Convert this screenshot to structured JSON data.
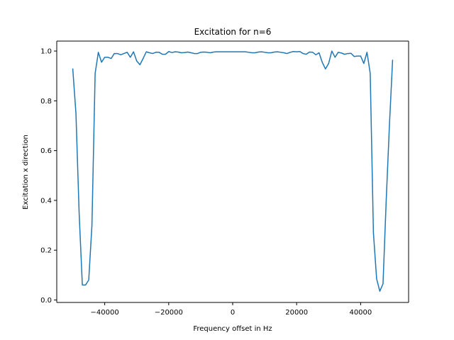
{
  "chart_data": {
    "type": "line",
    "title": "Excitation for n=6",
    "xlabel": "Frequency offset in Hz",
    "ylabel": "Excitation x direction",
    "xlim": [
      -55000,
      55000
    ],
    "ylim": [
      -0.01,
      1.04
    ],
    "xticks": [
      -40000,
      -20000,
      0,
      20000,
      40000
    ],
    "xtick_labels": [
      "−40000",
      "−20000",
      "0",
      "20000",
      "40000"
    ],
    "yticks": [
      0.0,
      0.2,
      0.4,
      0.6,
      0.8,
      1.0
    ],
    "ytick_labels": [
      "0.0",
      "0.2",
      "0.4",
      "0.6",
      "0.8",
      "1.0"
    ],
    "grid": false,
    "series": [
      {
        "color": "#1f77b4",
        "x": [
          -50000,
          -49000,
          -48000,
          -47000,
          -46000,
          -45000,
          -44000,
          -43000,
          -42000,
          -41000,
          -40000,
          -39000,
          -38000,
          -37000,
          -36000,
          -35000,
          -34000,
          -33000,
          -32000,
          -31000,
          -30000,
          -29000,
          -28000,
          -27000,
          -26000,
          -25000,
          -24000,
          -23000,
          -22000,
          -21000,
          -20000,
          -19000,
          -18000,
          -17000,
          -16000,
          -15000,
          -14000,
          -13000,
          -12000,
          -11000,
          -10000,
          -9000,
          -8000,
          -7000,
          -6000,
          -5000,
          -4000,
          -3000,
          -2000,
          -1000,
          0,
          1000,
          2000,
          3000,
          4000,
          5000,
          6000,
          7000,
          8000,
          9000,
          10000,
          11000,
          12000,
          13000,
          14000,
          15000,
          16000,
          17000,
          18000,
          19000,
          20000,
          21000,
          22000,
          23000,
          24000,
          25000,
          26000,
          27000,
          28000,
          29000,
          30000,
          31000,
          32000,
          33000,
          34000,
          35000,
          36000,
          37000,
          38000,
          39000,
          40000,
          41000,
          42000,
          43000,
          44000,
          45000,
          46000,
          47000,
          48000,
          49000,
          50000
        ],
        "values": [
          0.93,
          0.75,
          0.35,
          0.06,
          0.06,
          0.08,
          0.3,
          0.91,
          0.995,
          0.955,
          0.975,
          0.975,
          0.97,
          0.99,
          0.99,
          0.985,
          0.99,
          0.995,
          0.975,
          0.997,
          0.96,
          0.945,
          0.97,
          0.997,
          0.993,
          0.99,
          0.995,
          0.995,
          0.987,
          0.987,
          0.998,
          0.994,
          0.997,
          0.996,
          0.993,
          0.994,
          0.996,
          0.993,
          0.99,
          0.99,
          0.995,
          0.996,
          0.995,
          0.993,
          0.996,
          0.997,
          0.997,
          0.997,
          0.997,
          0.997,
          0.997,
          0.997,
          0.997,
          0.997,
          0.997,
          0.995,
          0.993,
          0.993,
          0.996,
          0.997,
          0.995,
          0.993,
          0.993,
          0.996,
          0.997,
          0.995,
          0.993,
          0.99,
          0.995,
          0.998,
          0.997,
          0.998,
          0.99,
          0.987,
          0.996,
          0.995,
          0.985,
          0.993,
          0.955,
          0.928,
          0.95,
          1.0,
          0.975,
          0.995,
          0.992,
          0.987,
          0.99,
          0.991,
          0.978,
          0.98,
          0.98,
          0.95,
          0.995,
          0.91,
          0.27,
          0.085,
          0.035,
          0.065,
          0.4,
          0.7,
          0.965
        ]
      }
    ]
  }
}
